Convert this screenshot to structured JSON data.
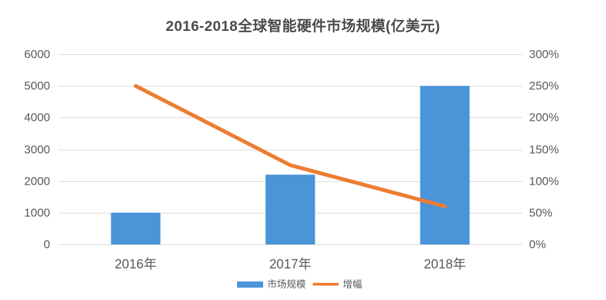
{
  "chart_data": {
    "type": "combo-bar-line",
    "title": "2016-2018全球智能硬件市场规模(亿美元)",
    "categories": [
      "2016年",
      "2017年",
      "2018年"
    ],
    "series": [
      {
        "name": "市场规模",
        "type": "bar",
        "axis": "left",
        "values": [
          1000,
          2200,
          5000
        ],
        "color": "#4a94d8"
      },
      {
        "name": "增幅",
        "type": "line",
        "axis": "right",
        "values": [
          250,
          125,
          60
        ],
        "unit": "%",
        "color": "#ed7d31"
      }
    ],
    "left_axis": {
      "min": 0,
      "max": 6000,
      "tick_labels": [
        "0",
        "1000",
        "2000",
        "3000",
        "4000",
        "5000",
        "6000"
      ]
    },
    "right_axis": {
      "min": 0,
      "max": 300,
      "tick_labels": [
        "0%",
        "50%",
        "100%",
        "150%",
        "200%",
        "250%",
        "300%"
      ]
    },
    "grid": true,
    "grid_color": "#d9d9d9",
    "legend_position": "bottom",
    "title_color": "#4a4a4a",
    "text_color": "#595959",
    "background_color": "#ffffff"
  }
}
